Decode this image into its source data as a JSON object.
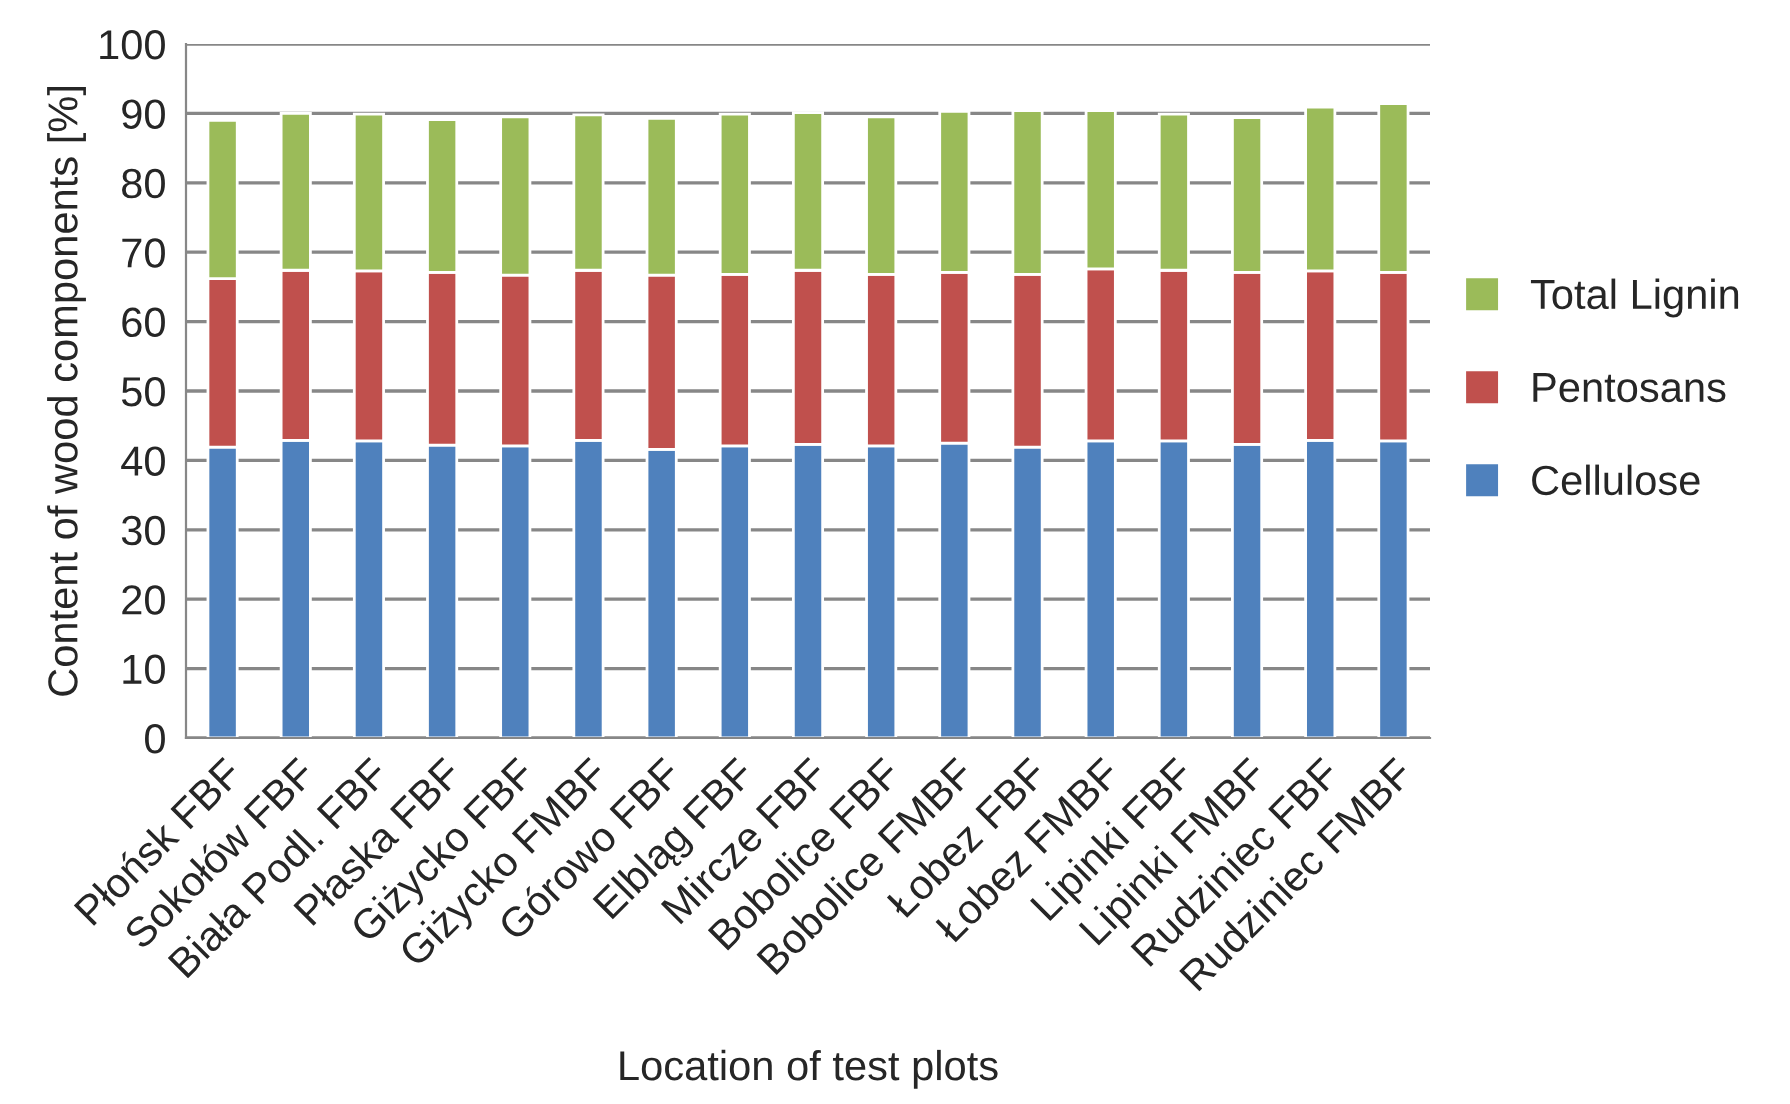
{
  "chart_data": {
    "type": "bar",
    "stacked": true,
    "xlabel": "Location of test plots",
    "ylabel": "Content of wood components [%]",
    "categories": [
      "Płońsk FBF",
      "Sokołów FBF",
      "Biała Podl. FBF",
      "Płaska FBF",
      "Giżycko FBF",
      "Giżycko FMBF",
      "Górowo FBF",
      "Elbląg FBF",
      "Mircze FBF",
      "Bobolice FBF",
      "Bobolice FMBF",
      "Łobez FBF",
      "Łobez FMBF",
      "Lipinki FBF",
      "Lipinki FMBF",
      "Rudziniec FBF",
      "Rudziniec FMBF"
    ],
    "series": [
      {
        "name": "Cellulose",
        "color": "#4f81bd",
        "values": [
          41.9,
          42.9,
          42.8,
          42.2,
          42.1,
          42.9,
          41.6,
          42.1,
          42.3,
          42.1,
          42.5,
          41.9,
          42.8,
          42.8,
          42.3,
          42.9,
          42.8
        ]
      },
      {
        "name": "Pentosans",
        "color": "#c0504d",
        "values": [
          24.3,
          24.5,
          24.5,
          24.9,
          24.6,
          24.5,
          25.1,
          24.7,
          25.1,
          24.7,
          24.6,
          24.9,
          24.8,
          24.6,
          24.8,
          24.4,
          24.3
        ]
      },
      {
        "name": "Total Lignin",
        "color": "#9bbb59",
        "values": [
          22.8,
          22.6,
          22.6,
          22.0,
          22.8,
          22.4,
          22.6,
          23.1,
          22.7,
          22.7,
          23.2,
          23.6,
          22.8,
          22.5,
          22.3,
          23.6,
          24.3
        ]
      }
    ],
    "ylim": [
      0,
      100
    ],
    "yticks": [
      0,
      10,
      20,
      30,
      40,
      50,
      60,
      70,
      80,
      90,
      100
    ],
    "grid": "y",
    "legend": "right"
  }
}
